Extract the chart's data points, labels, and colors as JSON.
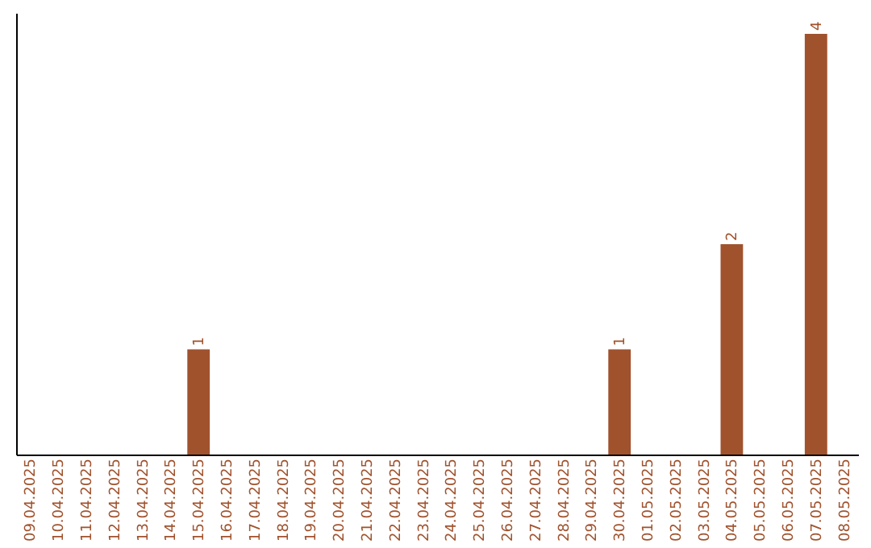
{
  "chart_data": {
    "type": "bar",
    "categories": [
      "09.04.2025",
      "10.04.2025",
      "11.04.2025",
      "12.04.2025",
      "13.04.2025",
      "14.04.2025",
      "15.04.2025",
      "16.04.2025",
      "17.04.2025",
      "18.04.2025",
      "19.04.2025",
      "20.04.2025",
      "21.04.2025",
      "22.04.2025",
      "23.04.2025",
      "24.04.2025",
      "25.04.2025",
      "26.04.2025",
      "27.04.2025",
      "28.04.2025",
      "29.04.2025",
      "30.04.2025",
      "01.05.2025",
      "02.05.2025",
      "03.05.2025",
      "04.05.2025",
      "05.05.2025",
      "06.05.2025",
      "07.05.2025",
      "08.05.2025"
    ],
    "values": [
      0,
      0,
      0,
      0,
      0,
      0,
      1,
      0,
      0,
      0,
      0,
      0,
      0,
      0,
      0,
      0,
      0,
      0,
      0,
      0,
      0,
      1,
      0,
      0,
      0,
      2,
      0,
      0,
      4,
      0
    ],
    "color": "#a0522d",
    "ylim": [
      0,
      4.2
    ],
    "value_labels": [
      null,
      null,
      null,
      null,
      null,
      null,
      "1",
      null,
      null,
      null,
      null,
      null,
      null,
      null,
      null,
      null,
      null,
      null,
      null,
      null,
      null,
      "1",
      null,
      null,
      null,
      "2",
      null,
      null,
      "4",
      null
    ],
    "tick_labels": "x",
    "grid": false
  }
}
